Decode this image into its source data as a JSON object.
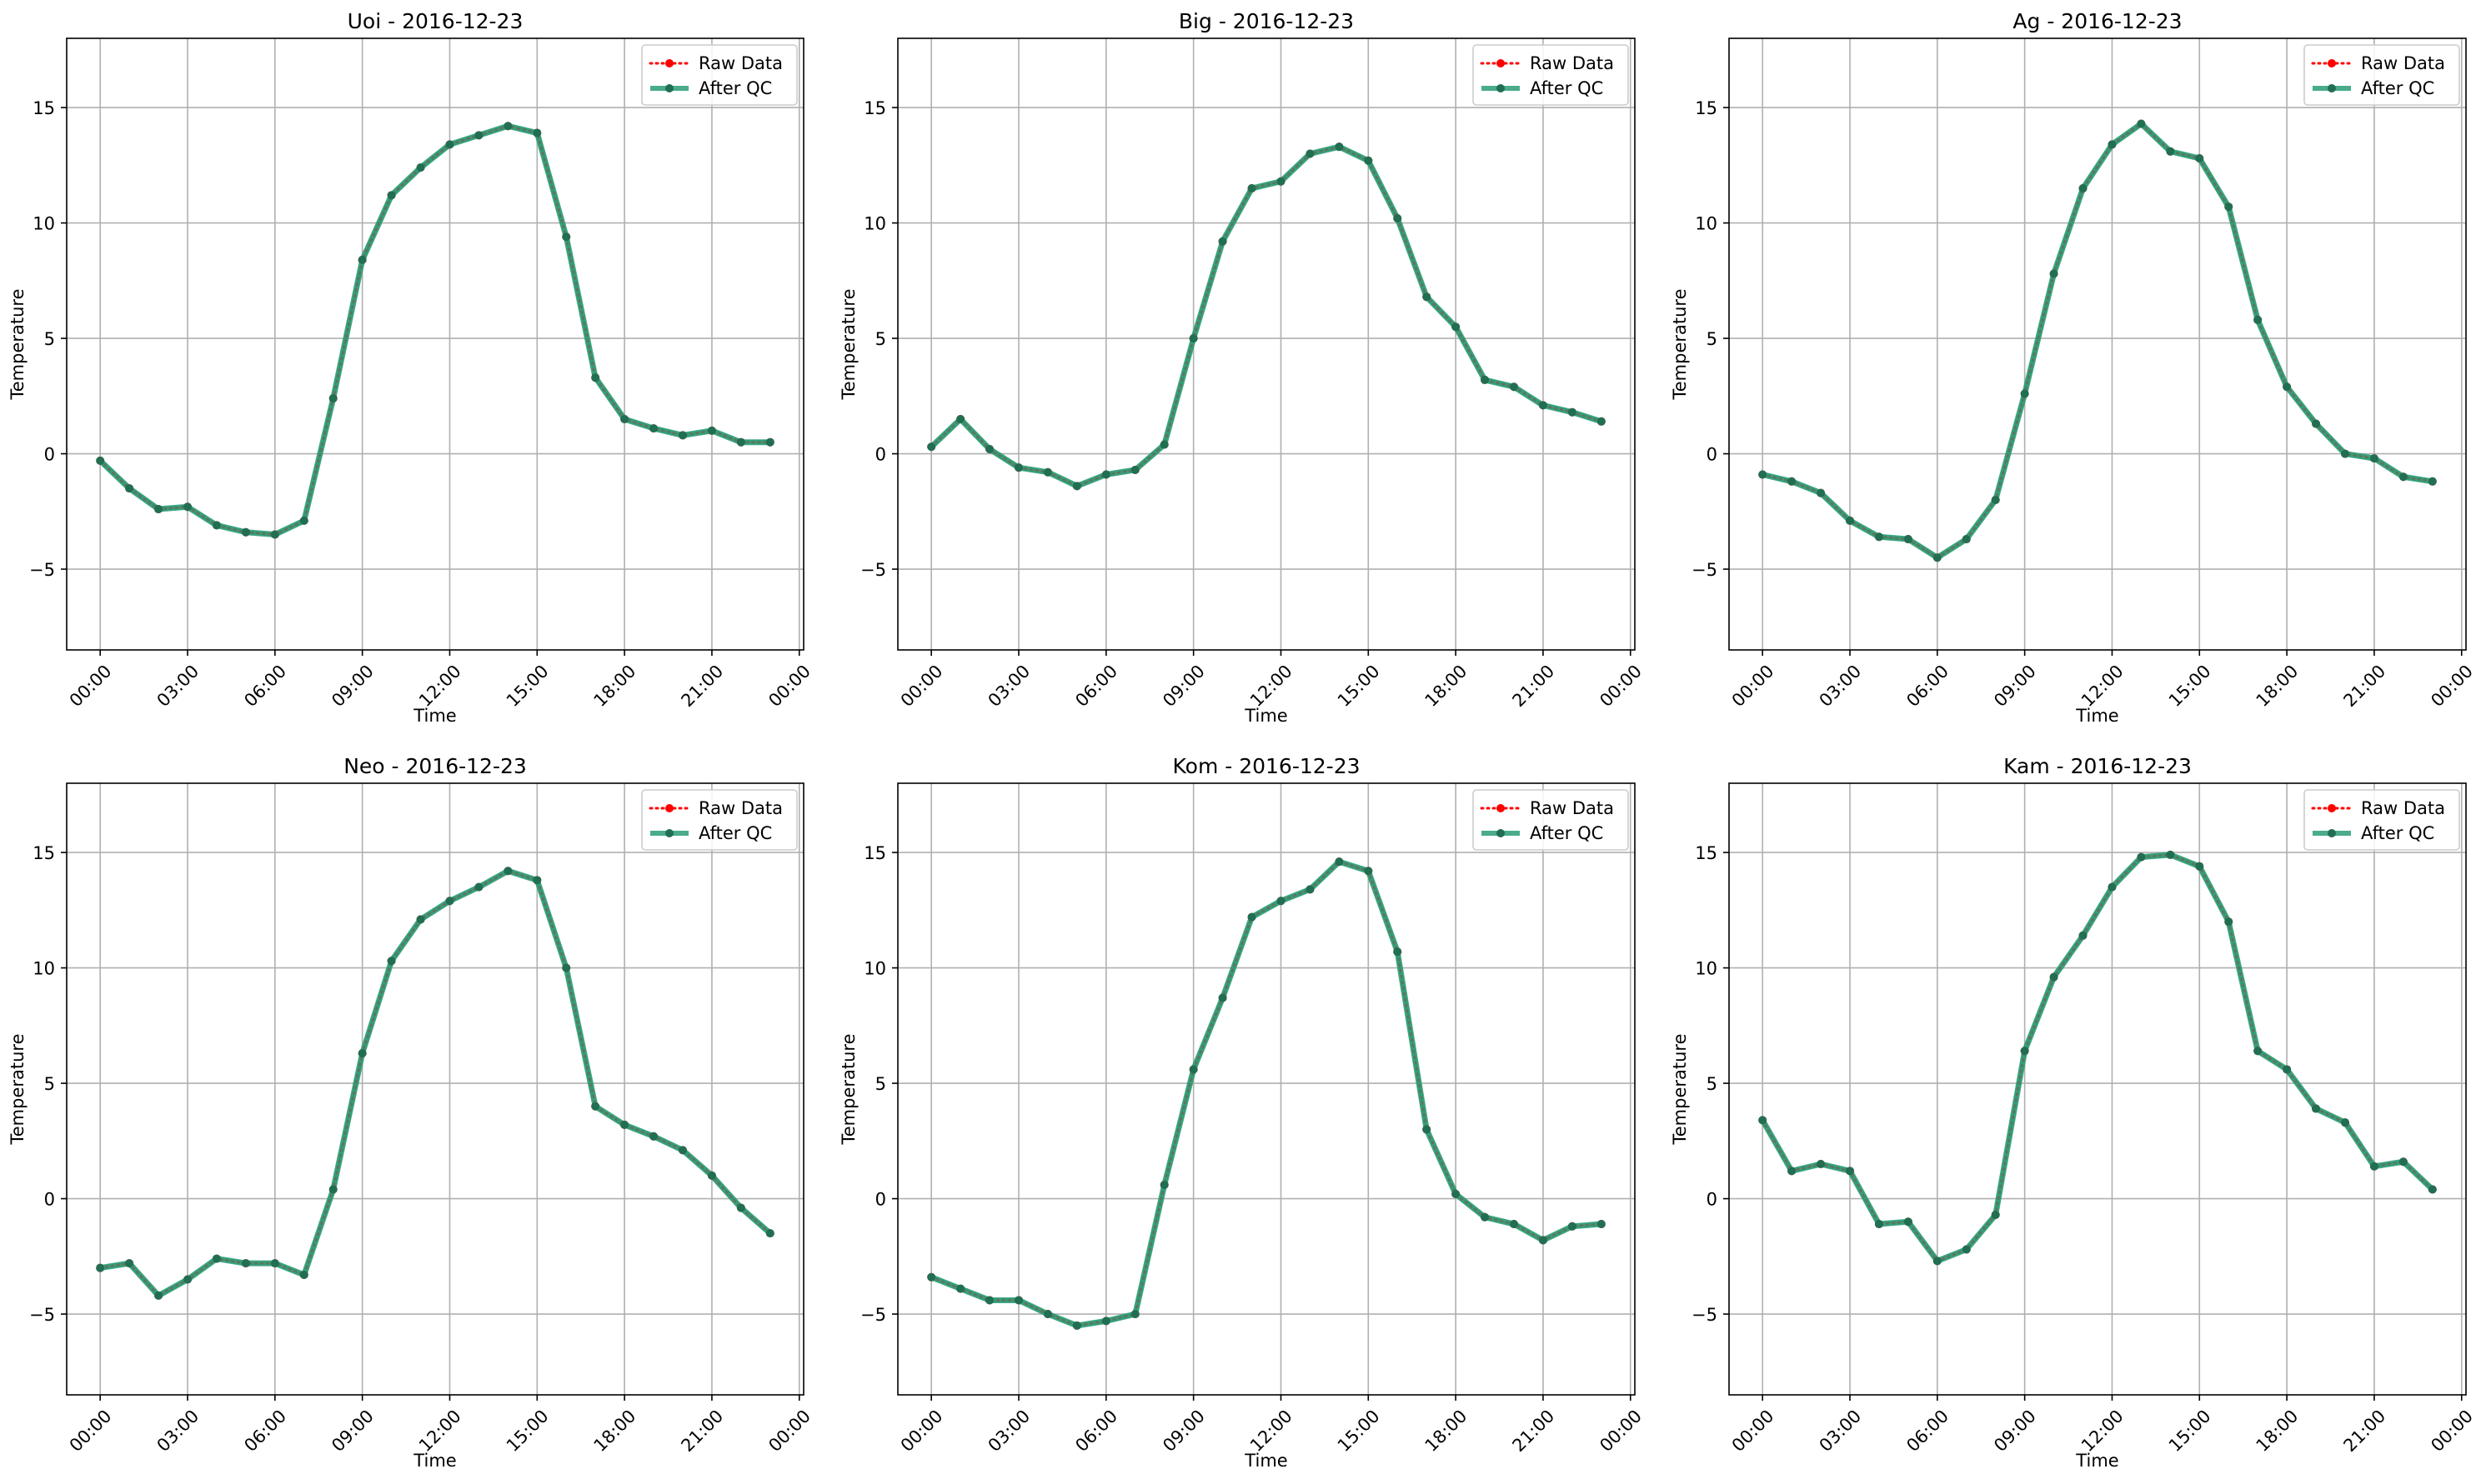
{
  "chart_data": [
    {
      "type": "line",
      "title": "Uoi - 2016-12-23",
      "xlabel": "Time",
      "ylabel": "Temperature",
      "ylim": [
        -8.5,
        18
      ],
      "xlim": [
        -1.15,
        24.15
      ],
      "x": [
        "00:00",
        "01:00",
        "02:00",
        "03:00",
        "04:00",
        "05:00",
        "06:00",
        "07:00",
        "08:00",
        "09:00",
        "10:00",
        "11:00",
        "12:00",
        "13:00",
        "14:00",
        "15:00",
        "16:00",
        "17:00",
        "18:00",
        "19:00",
        "20:00",
        "21:00",
        "22:00",
        "23:00"
      ],
      "xticks": [
        "00:00",
        "03:00",
        "06:00",
        "09:00",
        "12:00",
        "15:00",
        "18:00",
        "21:00",
        "00:00"
      ],
      "yticks": [
        -5,
        0,
        5,
        10,
        15
      ],
      "grid": true,
      "legend_position": "top-right",
      "series": [
        {
          "name": "Raw Data",
          "color": "#ff0000",
          "values": [
            -0.3,
            -1.5,
            -2.4,
            -2.3,
            -3.1,
            -3.4,
            -3.5,
            -2.9,
            2.4,
            8.4,
            11.2,
            12.4,
            13.4,
            13.8,
            14.2,
            13.9,
            9.4,
            3.3,
            1.5,
            1.1,
            0.8,
            1.0,
            0.5,
            0.5
          ]
        },
        {
          "name": "After QC",
          "color": "#2a9d78",
          "values": [
            -0.3,
            -1.5,
            -2.4,
            -2.3,
            -3.1,
            -3.4,
            -3.5,
            -2.9,
            2.4,
            8.4,
            11.2,
            12.4,
            13.4,
            13.8,
            14.2,
            13.9,
            9.4,
            3.3,
            1.5,
            1.1,
            0.8,
            1.0,
            0.5,
            0.5
          ]
        }
      ]
    },
    {
      "type": "line",
      "title": "Big - 2016-12-23",
      "xlabel": "Time",
      "ylabel": "Temperature",
      "ylim": [
        -8.5,
        18
      ],
      "xlim": [
        -1.15,
        24.15
      ],
      "x": [
        "00:00",
        "01:00",
        "02:00",
        "03:00",
        "04:00",
        "05:00",
        "06:00",
        "07:00",
        "08:00",
        "09:00",
        "10:00",
        "11:00",
        "12:00",
        "13:00",
        "14:00",
        "15:00",
        "16:00",
        "17:00",
        "18:00",
        "19:00",
        "20:00",
        "21:00",
        "22:00",
        "23:00"
      ],
      "xticks": [
        "00:00",
        "03:00",
        "06:00",
        "09:00",
        "12:00",
        "15:00",
        "18:00",
        "21:00",
        "00:00"
      ],
      "yticks": [
        -5,
        0,
        5,
        10,
        15
      ],
      "grid": true,
      "legend_position": "top-right",
      "series": [
        {
          "name": "Raw Data",
          "color": "#ff0000",
          "values": [
            0.3,
            1.5,
            0.2,
            -0.6,
            -0.8,
            -1.4,
            -0.9,
            -0.7,
            0.4,
            5.0,
            9.2,
            11.5,
            11.8,
            13.0,
            13.3,
            12.7,
            10.2,
            6.8,
            5.5,
            3.2,
            2.9,
            2.1,
            1.8,
            1.4
          ]
        },
        {
          "name": "After QC",
          "color": "#2a9d78",
          "values": [
            0.3,
            1.5,
            0.2,
            -0.6,
            -0.8,
            -1.4,
            -0.9,
            -0.7,
            0.4,
            5.0,
            9.2,
            11.5,
            11.8,
            13.0,
            13.3,
            12.7,
            10.2,
            6.8,
            5.5,
            3.2,
            2.9,
            2.1,
            1.8,
            1.4
          ]
        }
      ]
    },
    {
      "type": "line",
      "title": "Ag - 2016-12-23",
      "xlabel": "Time",
      "ylabel": "Temperature",
      "ylim": [
        -8.5,
        18
      ],
      "xlim": [
        -1.15,
        24.15
      ],
      "x": [
        "00:00",
        "01:00",
        "02:00",
        "03:00",
        "04:00",
        "05:00",
        "06:00",
        "07:00",
        "08:00",
        "09:00",
        "10:00",
        "11:00",
        "12:00",
        "13:00",
        "14:00",
        "15:00",
        "16:00",
        "17:00",
        "18:00",
        "19:00",
        "20:00",
        "21:00",
        "22:00",
        "23:00"
      ],
      "xticks": [
        "00:00",
        "03:00",
        "06:00",
        "09:00",
        "12:00",
        "15:00",
        "18:00",
        "21:00",
        "00:00"
      ],
      "yticks": [
        -5,
        0,
        5,
        10,
        15
      ],
      "grid": true,
      "legend_position": "top-right",
      "series": [
        {
          "name": "Raw Data",
          "color": "#ff0000",
          "values": [
            -0.9,
            -1.2,
            -1.7,
            -2.9,
            -3.6,
            -3.7,
            -4.5,
            -3.7,
            -2.0,
            2.6,
            7.8,
            11.5,
            13.4,
            14.3,
            13.1,
            12.8,
            10.7,
            5.8,
            2.9,
            1.3,
            0.0,
            -0.2,
            -1.0,
            -1.2
          ]
        },
        {
          "name": "After QC",
          "color": "#2a9d78",
          "values": [
            -0.9,
            -1.2,
            -1.7,
            -2.9,
            -3.6,
            -3.7,
            -4.5,
            -3.7,
            -2.0,
            2.6,
            7.8,
            11.5,
            13.4,
            14.3,
            13.1,
            12.8,
            10.7,
            5.8,
            2.9,
            1.3,
            0.0,
            -0.2,
            -1.0,
            -1.2
          ]
        }
      ]
    },
    {
      "type": "line",
      "title": "Neo - 2016-12-23",
      "xlabel": "Time",
      "ylabel": "Temperature",
      "ylim": [
        -8.5,
        18
      ],
      "xlim": [
        -1.15,
        24.15
      ],
      "x": [
        "00:00",
        "01:00",
        "02:00",
        "03:00",
        "04:00",
        "05:00",
        "06:00",
        "07:00",
        "08:00",
        "09:00",
        "10:00",
        "11:00",
        "12:00",
        "13:00",
        "14:00",
        "15:00",
        "16:00",
        "17:00",
        "18:00",
        "19:00",
        "20:00",
        "21:00",
        "22:00",
        "23:00"
      ],
      "xticks": [
        "00:00",
        "03:00",
        "06:00",
        "09:00",
        "12:00",
        "15:00",
        "18:00",
        "21:00",
        "00:00"
      ],
      "yticks": [
        -5,
        0,
        5,
        10,
        15
      ],
      "grid": true,
      "legend_position": "top-right",
      "series": [
        {
          "name": "Raw Data",
          "color": "#ff0000",
          "values": [
            -3.0,
            -2.8,
            -4.2,
            -3.5,
            -2.6,
            -2.8,
            -2.8,
            -3.3,
            0.4,
            6.3,
            10.3,
            12.1,
            12.9,
            13.5,
            14.2,
            13.8,
            10.0,
            4.0,
            3.2,
            2.7,
            2.1,
            1.0,
            -0.4,
            -1.5
          ]
        },
        {
          "name": "After QC",
          "color": "#2a9d78",
          "values": [
            -3.0,
            -2.8,
            -4.2,
            -3.5,
            -2.6,
            -2.8,
            -2.8,
            -3.3,
            0.4,
            6.3,
            10.3,
            12.1,
            12.9,
            13.5,
            14.2,
            13.8,
            10.0,
            4.0,
            3.2,
            2.7,
            2.1,
            1.0,
            -0.4,
            -1.5
          ]
        }
      ]
    },
    {
      "type": "line",
      "title": "Kom - 2016-12-23",
      "xlabel": "Time",
      "ylabel": "Temperature",
      "ylim": [
        -8.5,
        18
      ],
      "xlim": [
        -1.15,
        24.15
      ],
      "x": [
        "00:00",
        "01:00",
        "02:00",
        "03:00",
        "04:00",
        "05:00",
        "06:00",
        "07:00",
        "08:00",
        "09:00",
        "10:00",
        "11:00",
        "12:00",
        "13:00",
        "14:00",
        "15:00",
        "16:00",
        "17:00",
        "18:00",
        "19:00",
        "20:00",
        "21:00",
        "22:00",
        "23:00"
      ],
      "xticks": [
        "00:00",
        "03:00",
        "06:00",
        "09:00",
        "12:00",
        "15:00",
        "18:00",
        "21:00",
        "00:00"
      ],
      "yticks": [
        -5,
        0,
        5,
        10,
        15
      ],
      "grid": true,
      "legend_position": "top-right",
      "series": [
        {
          "name": "Raw Data",
          "color": "#ff0000",
          "values": [
            -3.4,
            -3.9,
            -4.4,
            -4.4,
            -5.0,
            -5.5,
            -5.3,
            -5.0,
            0.6,
            5.6,
            8.7,
            12.2,
            12.9,
            13.4,
            14.6,
            14.2,
            10.7,
            3.0,
            0.2,
            -0.8,
            -1.1,
            -1.8,
            -1.2,
            -1.1
          ]
        },
        {
          "name": "After QC",
          "color": "#2a9d78",
          "values": [
            -3.4,
            -3.9,
            -4.4,
            -4.4,
            -5.0,
            -5.5,
            -5.3,
            -5.0,
            0.6,
            5.6,
            8.7,
            12.2,
            12.9,
            13.4,
            14.6,
            14.2,
            10.7,
            3.0,
            0.2,
            -0.8,
            -1.1,
            -1.8,
            -1.2,
            -1.1
          ]
        }
      ]
    },
    {
      "type": "line",
      "title": "Kam - 2016-12-23",
      "xlabel": "Time",
      "ylabel": "Temperature",
      "ylim": [
        -8.5,
        18
      ],
      "xlim": [
        -1.15,
        24.15
      ],
      "x": [
        "00:00",
        "01:00",
        "02:00",
        "03:00",
        "04:00",
        "05:00",
        "06:00",
        "07:00",
        "08:00",
        "09:00",
        "10:00",
        "11:00",
        "12:00",
        "13:00",
        "14:00",
        "15:00",
        "16:00",
        "17:00",
        "18:00",
        "19:00",
        "20:00",
        "21:00",
        "22:00",
        "23:00"
      ],
      "xticks": [
        "00:00",
        "03:00",
        "06:00",
        "09:00",
        "12:00",
        "15:00",
        "18:00",
        "21:00",
        "00:00"
      ],
      "yticks": [
        -5,
        0,
        5,
        10,
        15
      ],
      "grid": true,
      "legend_position": "top-right",
      "series": [
        {
          "name": "Raw Data",
          "color": "#ff0000",
          "values": [
            3.4,
            1.2,
            1.5,
            1.2,
            -1.1,
            -1.0,
            -2.7,
            -2.2,
            -0.7,
            6.4,
            9.6,
            11.4,
            13.5,
            14.8,
            14.9,
            14.4,
            12.0,
            6.4,
            5.6,
            3.9,
            3.3,
            1.4,
            1.6,
            0.4
          ]
        },
        {
          "name": "After QC",
          "color": "#2a9d78",
          "values": [
            3.4,
            1.2,
            1.5,
            1.2,
            -1.1,
            -1.0,
            -2.7,
            -2.2,
            -0.7,
            6.4,
            9.6,
            11.4,
            13.5,
            14.8,
            14.9,
            14.4,
            12.0,
            6.4,
            5.6,
            3.9,
            3.3,
            1.4,
            1.6,
            0.4
          ]
        }
      ]
    }
  ]
}
